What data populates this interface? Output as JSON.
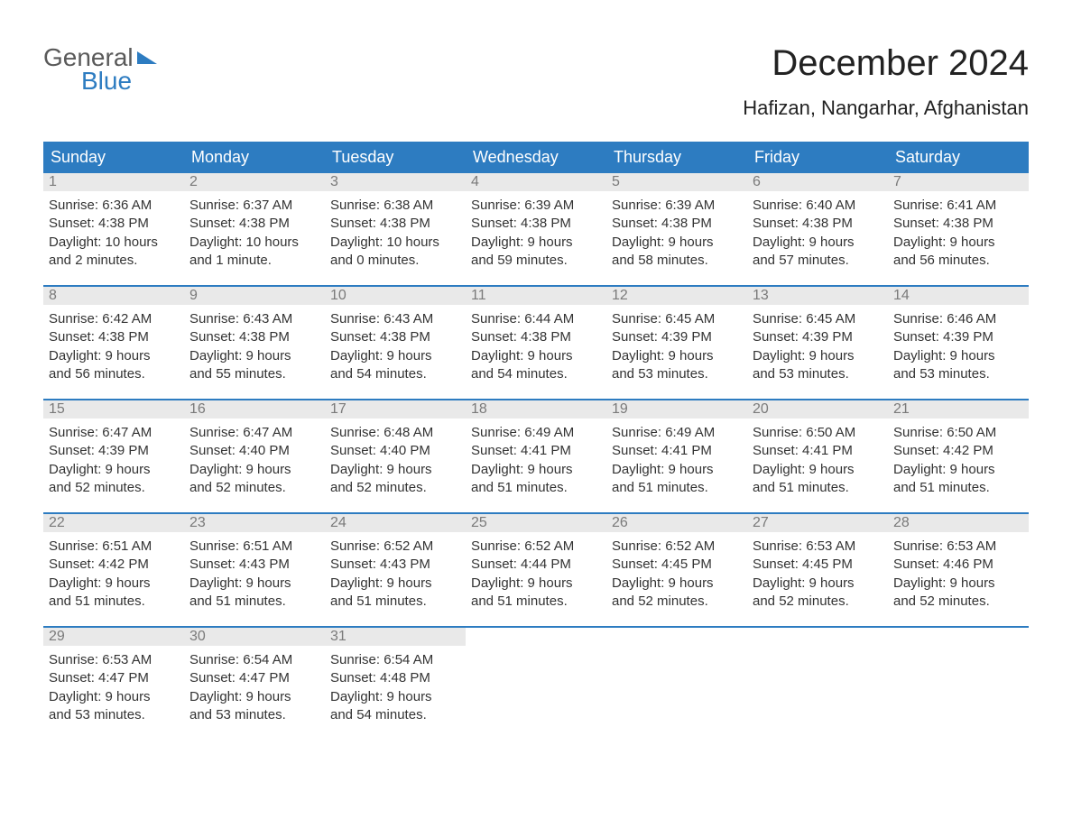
{
  "logo": {
    "text1": "General",
    "text2": "Blue"
  },
  "title": "December 2024",
  "location": "Hafizan, Nangarhar, Afghanistan",
  "colors": {
    "header_bg": "#2d7cc1",
    "header_text": "#ffffff",
    "daynum_bg": "#e9e9e9",
    "daynum_text": "#7a7a7a",
    "body_text": "#333333",
    "row_border": "#2d7cc1",
    "background": "#ffffff"
  },
  "day_names": [
    "Sunday",
    "Monday",
    "Tuesday",
    "Wednesday",
    "Thursday",
    "Friday",
    "Saturday"
  ],
  "weeks": [
    [
      {
        "n": "1",
        "sr": "Sunrise: 6:36 AM",
        "ss": "Sunset: 4:38 PM",
        "d1": "Daylight: 10 hours",
        "d2": "and 2 minutes."
      },
      {
        "n": "2",
        "sr": "Sunrise: 6:37 AM",
        "ss": "Sunset: 4:38 PM",
        "d1": "Daylight: 10 hours",
        "d2": "and 1 minute."
      },
      {
        "n": "3",
        "sr": "Sunrise: 6:38 AM",
        "ss": "Sunset: 4:38 PM",
        "d1": "Daylight: 10 hours",
        "d2": "and 0 minutes."
      },
      {
        "n": "4",
        "sr": "Sunrise: 6:39 AM",
        "ss": "Sunset: 4:38 PM",
        "d1": "Daylight: 9 hours",
        "d2": "and 59 minutes."
      },
      {
        "n": "5",
        "sr": "Sunrise: 6:39 AM",
        "ss": "Sunset: 4:38 PM",
        "d1": "Daylight: 9 hours",
        "d2": "and 58 minutes."
      },
      {
        "n": "6",
        "sr": "Sunrise: 6:40 AM",
        "ss": "Sunset: 4:38 PM",
        "d1": "Daylight: 9 hours",
        "d2": "and 57 minutes."
      },
      {
        "n": "7",
        "sr": "Sunrise: 6:41 AM",
        "ss": "Sunset: 4:38 PM",
        "d1": "Daylight: 9 hours",
        "d2": "and 56 minutes."
      }
    ],
    [
      {
        "n": "8",
        "sr": "Sunrise: 6:42 AM",
        "ss": "Sunset: 4:38 PM",
        "d1": "Daylight: 9 hours",
        "d2": "and 56 minutes."
      },
      {
        "n": "9",
        "sr": "Sunrise: 6:43 AM",
        "ss": "Sunset: 4:38 PM",
        "d1": "Daylight: 9 hours",
        "d2": "and 55 minutes."
      },
      {
        "n": "10",
        "sr": "Sunrise: 6:43 AM",
        "ss": "Sunset: 4:38 PM",
        "d1": "Daylight: 9 hours",
        "d2": "and 54 minutes."
      },
      {
        "n": "11",
        "sr": "Sunrise: 6:44 AM",
        "ss": "Sunset: 4:38 PM",
        "d1": "Daylight: 9 hours",
        "d2": "and 54 minutes."
      },
      {
        "n": "12",
        "sr": "Sunrise: 6:45 AM",
        "ss": "Sunset: 4:39 PM",
        "d1": "Daylight: 9 hours",
        "d2": "and 53 minutes."
      },
      {
        "n": "13",
        "sr": "Sunrise: 6:45 AM",
        "ss": "Sunset: 4:39 PM",
        "d1": "Daylight: 9 hours",
        "d2": "and 53 minutes."
      },
      {
        "n": "14",
        "sr": "Sunrise: 6:46 AM",
        "ss": "Sunset: 4:39 PM",
        "d1": "Daylight: 9 hours",
        "d2": "and 53 minutes."
      }
    ],
    [
      {
        "n": "15",
        "sr": "Sunrise: 6:47 AM",
        "ss": "Sunset: 4:39 PM",
        "d1": "Daylight: 9 hours",
        "d2": "and 52 minutes."
      },
      {
        "n": "16",
        "sr": "Sunrise: 6:47 AM",
        "ss": "Sunset: 4:40 PM",
        "d1": "Daylight: 9 hours",
        "d2": "and 52 minutes."
      },
      {
        "n": "17",
        "sr": "Sunrise: 6:48 AM",
        "ss": "Sunset: 4:40 PM",
        "d1": "Daylight: 9 hours",
        "d2": "and 52 minutes."
      },
      {
        "n": "18",
        "sr": "Sunrise: 6:49 AM",
        "ss": "Sunset: 4:41 PM",
        "d1": "Daylight: 9 hours",
        "d2": "and 51 minutes."
      },
      {
        "n": "19",
        "sr": "Sunrise: 6:49 AM",
        "ss": "Sunset: 4:41 PM",
        "d1": "Daylight: 9 hours",
        "d2": "and 51 minutes."
      },
      {
        "n": "20",
        "sr": "Sunrise: 6:50 AM",
        "ss": "Sunset: 4:41 PM",
        "d1": "Daylight: 9 hours",
        "d2": "and 51 minutes."
      },
      {
        "n": "21",
        "sr": "Sunrise: 6:50 AM",
        "ss": "Sunset: 4:42 PM",
        "d1": "Daylight: 9 hours",
        "d2": "and 51 minutes."
      }
    ],
    [
      {
        "n": "22",
        "sr": "Sunrise: 6:51 AM",
        "ss": "Sunset: 4:42 PM",
        "d1": "Daylight: 9 hours",
        "d2": "and 51 minutes."
      },
      {
        "n": "23",
        "sr": "Sunrise: 6:51 AM",
        "ss": "Sunset: 4:43 PM",
        "d1": "Daylight: 9 hours",
        "d2": "and 51 minutes."
      },
      {
        "n": "24",
        "sr": "Sunrise: 6:52 AM",
        "ss": "Sunset: 4:43 PM",
        "d1": "Daylight: 9 hours",
        "d2": "and 51 minutes."
      },
      {
        "n": "25",
        "sr": "Sunrise: 6:52 AM",
        "ss": "Sunset: 4:44 PM",
        "d1": "Daylight: 9 hours",
        "d2": "and 51 minutes."
      },
      {
        "n": "26",
        "sr": "Sunrise: 6:52 AM",
        "ss": "Sunset: 4:45 PM",
        "d1": "Daylight: 9 hours",
        "d2": "and 52 minutes."
      },
      {
        "n": "27",
        "sr": "Sunrise: 6:53 AM",
        "ss": "Sunset: 4:45 PM",
        "d1": "Daylight: 9 hours",
        "d2": "and 52 minutes."
      },
      {
        "n": "28",
        "sr": "Sunrise: 6:53 AM",
        "ss": "Sunset: 4:46 PM",
        "d1": "Daylight: 9 hours",
        "d2": "and 52 minutes."
      }
    ],
    [
      {
        "n": "29",
        "sr": "Sunrise: 6:53 AM",
        "ss": "Sunset: 4:47 PM",
        "d1": "Daylight: 9 hours",
        "d2": "and 53 minutes."
      },
      {
        "n": "30",
        "sr": "Sunrise: 6:54 AM",
        "ss": "Sunset: 4:47 PM",
        "d1": "Daylight: 9 hours",
        "d2": "and 53 minutes."
      },
      {
        "n": "31",
        "sr": "Sunrise: 6:54 AM",
        "ss": "Sunset: 4:48 PM",
        "d1": "Daylight: 9 hours",
        "d2": "and 54 minutes."
      },
      null,
      null,
      null,
      null
    ]
  ]
}
